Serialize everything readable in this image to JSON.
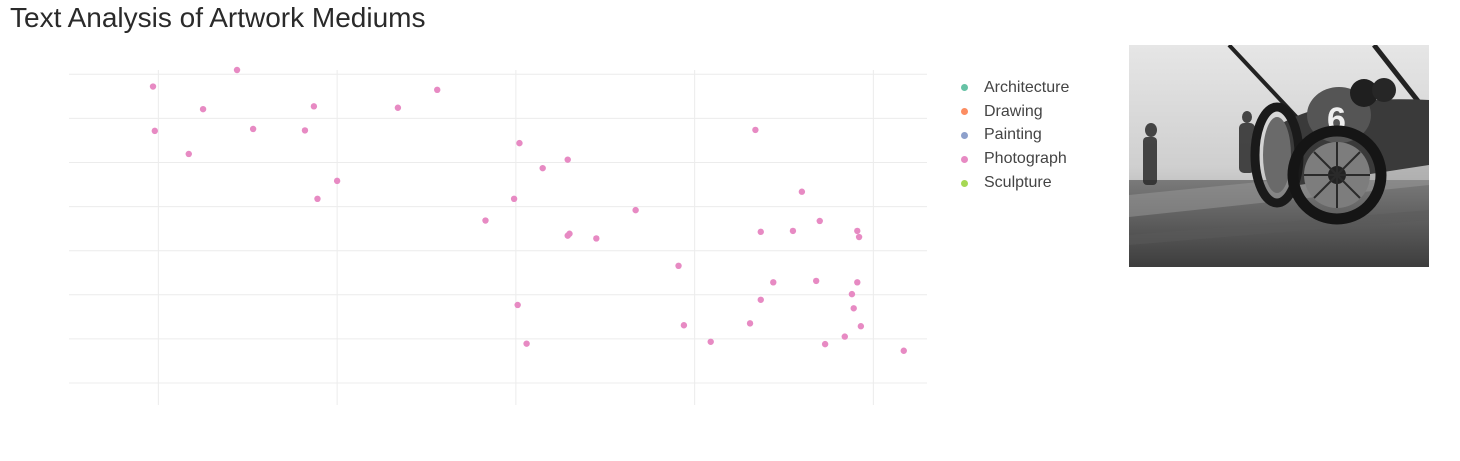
{
  "title": "Text Analysis of Artwork Mediums",
  "legend": [
    {
      "label": "Architecture",
      "color": "#66c2a5"
    },
    {
      "label": "Drawing",
      "color": "#fc8d62"
    },
    {
      "label": "Painting",
      "color": "#8da0cb"
    },
    {
      "label": "Photograph",
      "color": "#e78ac3"
    },
    {
      "label": "Sculpture",
      "color": "#a6d854"
    }
  ],
  "chart_data": {
    "type": "scatter",
    "title": "Text Analysis of Artwork Mediums",
    "xlabel": "",
    "ylabel": "",
    "xlim": [
      -0.5,
      4.3
    ],
    "ylim": [
      -0.55,
      6.55
    ],
    "grid": true,
    "legend_position": "right",
    "series": [
      {
        "name": "Photograph",
        "color": "#e78ac3",
        "x": [
          -0.03,
          -0.02,
          0.17,
          0.25,
          0.44,
          0.53,
          0.82,
          0.87,
          0.89,
          1.0,
          1.34,
          1.56,
          1.83,
          1.99,
          2.02,
          2.01,
          2.06,
          2.15,
          2.29,
          2.29,
          2.3,
          2.45,
          2.67,
          2.91,
          2.94,
          3.09,
          3.37,
          3.37,
          3.34,
          3.55,
          3.7,
          3.6,
          3.44,
          3.31,
          3.91,
          3.92,
          3.91,
          3.89,
          3.93,
          3.84,
          3.73,
          3.88,
          3.68,
          4.17
        ],
        "y": [
          6.2,
          5.26,
          4.77,
          5.72,
          6.55,
          5.3,
          5.27,
          5.78,
          3.82,
          4.2,
          5.75,
          6.13,
          3.36,
          3.82,
          5.0,
          1.57,
          0.75,
          4.47,
          4.65,
          3.04,
          3.08,
          2.98,
          3.58,
          2.4,
          1.14,
          0.79,
          3.12,
          1.68,
          5.28,
          3.14,
          3.35,
          3.97,
          2.05,
          1.18,
          3.14,
          3.01,
          2.05,
          1.5,
          1.12,
          0.9,
          0.74,
          1.8,
          2.08,
          0.6
        ]
      }
    ]
  }
}
